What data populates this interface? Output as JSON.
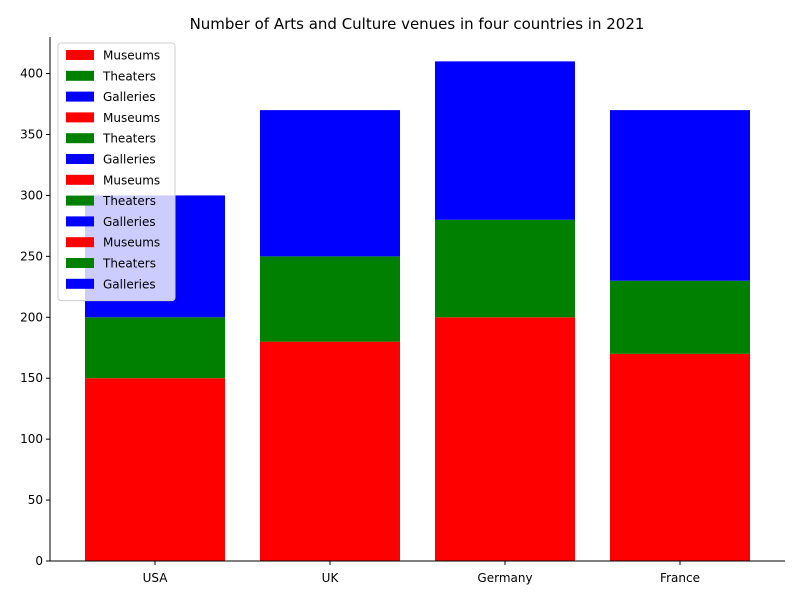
{
  "chart_data": {
    "type": "bar",
    "stacked": true,
    "title": "Number of Arts and Culture venues in four countries in 2021",
    "categories": [
      "USA",
      "UK",
      "Germany",
      "France"
    ],
    "series": [
      {
        "name": "Museums",
        "color": "#ff0000",
        "values": [
          150,
          180,
          200,
          170
        ]
      },
      {
        "name": "Theaters",
        "color": "#008000",
        "values": [
          50,
          70,
          80,
          60
        ]
      },
      {
        "name": "Galleries",
        "color": "#0000ff",
        "values": [
          100,
          120,
          130,
          140
        ]
      }
    ],
    "ylim": [
      0,
      430
    ],
    "yticks": [
      0,
      50,
      100,
      150,
      200,
      250,
      300,
      350,
      400
    ],
    "legend": {
      "placement": "upper-left",
      "entries": [
        "Museums",
        "Theaters",
        "Galleries",
        "Museums",
        "Theaters",
        "Galleries",
        "Museums",
        "Theaters",
        "Galleries",
        "Museums",
        "Theaters",
        "Galleries"
      ]
    },
    "grid": false
  }
}
